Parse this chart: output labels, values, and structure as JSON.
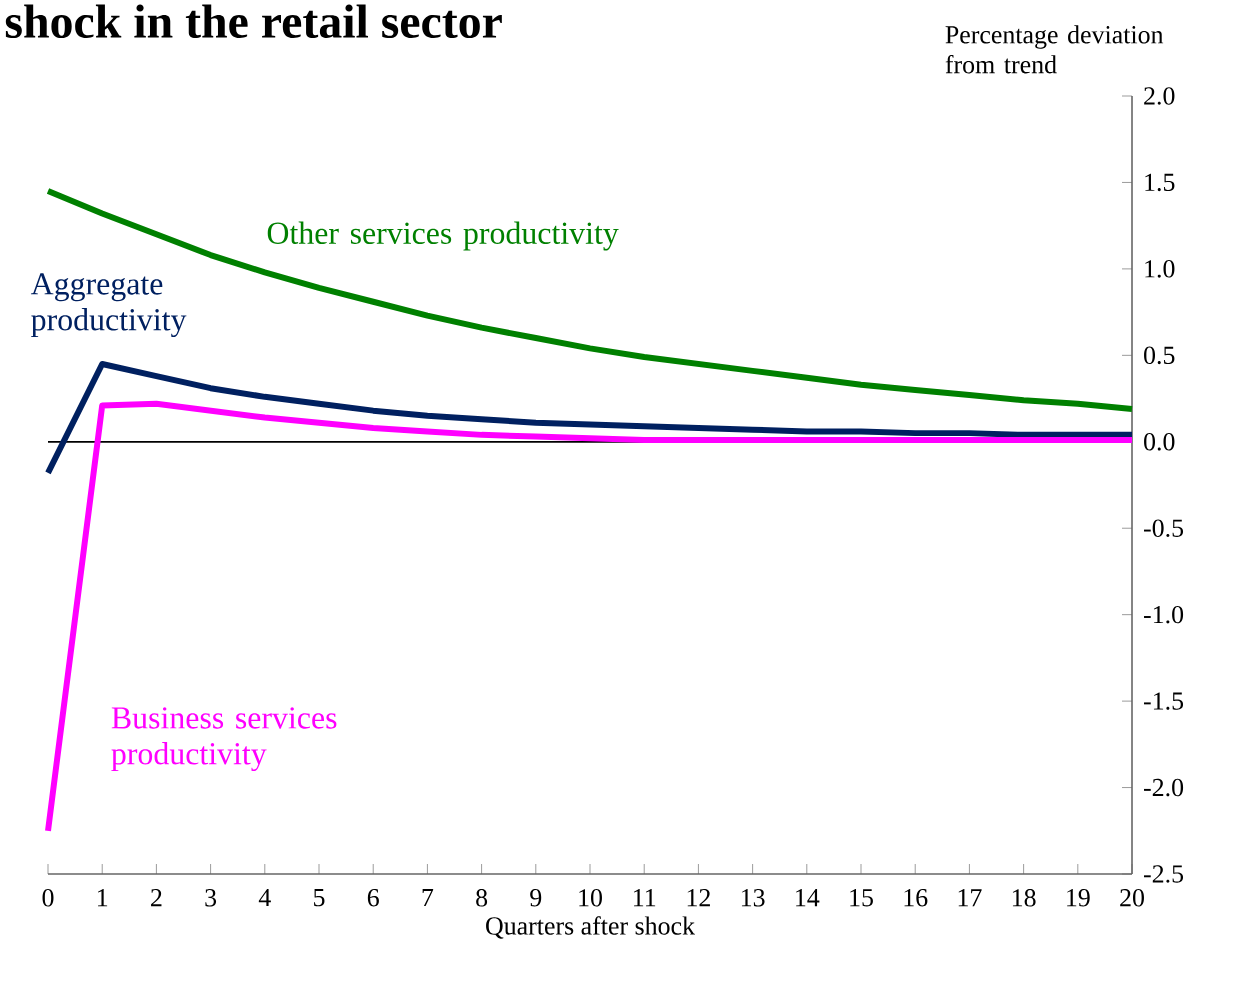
{
  "chart_data": {
    "type": "line",
    "title": "shock in the retail sector",
    "xlabel": "Quarters after shock",
    "ylabel": "Percentage deviation from trend",
    "x": [
      0,
      1,
      2,
      3,
      4,
      5,
      6,
      7,
      8,
      9,
      10,
      11,
      12,
      13,
      14,
      15,
      16,
      17,
      18,
      19,
      20
    ],
    "series": [
      {
        "name": "Other services productivity",
        "color": "#008000",
        "values": [
          1.45,
          1.32,
          1.2,
          1.08,
          0.98,
          0.89,
          0.81,
          0.73,
          0.66,
          0.6,
          0.54,
          0.49,
          0.45,
          0.41,
          0.37,
          0.33,
          0.3,
          0.27,
          0.24,
          0.22,
          0.19
        ]
      },
      {
        "name": "Aggregate productivity",
        "color": "#002060",
        "values": [
          -0.18,
          0.45,
          0.38,
          0.31,
          0.26,
          0.22,
          0.18,
          0.15,
          0.13,
          0.11,
          0.1,
          0.09,
          0.08,
          0.07,
          0.06,
          0.06,
          0.05,
          0.05,
          0.04,
          0.04,
          0.04
        ]
      },
      {
        "name": "Business services productivity",
        "color": "#ff00ff",
        "values": [
          -2.25,
          0.21,
          0.22,
          0.18,
          0.14,
          0.11,
          0.08,
          0.06,
          0.04,
          0.03,
          0.02,
          0.01,
          0.01,
          0.01,
          0.01,
          0.01,
          0.01,
          0.01,
          0.01,
          0.01,
          0.01
        ]
      }
    ],
    "xlim": [
      0,
      20
    ],
    "xticks": [
      0,
      1,
      2,
      3,
      4,
      5,
      6,
      7,
      8,
      9,
      10,
      11,
      12,
      13,
      14,
      15,
      16,
      17,
      18,
      19,
      20
    ],
    "ylim": [
      -2.5,
      2.0
    ],
    "yticks": [
      {
        "value": 2.0,
        "label": "2.0"
      },
      {
        "value": 1.5,
        "label": "1.5"
      },
      {
        "value": 1.0,
        "label": "1.0"
      },
      {
        "value": 0.5,
        "label": "0.5"
      },
      {
        "value": 0.0,
        "label": "0.0"
      },
      {
        "value": -0.5,
        "label": "-0.5"
      },
      {
        "value": -1.0,
        "label": "-1.0"
      },
      {
        "value": -1.5,
        "label": "-1.5"
      },
      {
        "value": -2.0,
        "label": "-2.0"
      },
      {
        "value": -2.5,
        "label": "-2.5"
      }
    ],
    "ref_lines": [
      {
        "axis": "y",
        "value": 0,
        "color": "#000000"
      }
    ],
    "grid": false,
    "marker": "none",
    "line_style": "solid"
  }
}
